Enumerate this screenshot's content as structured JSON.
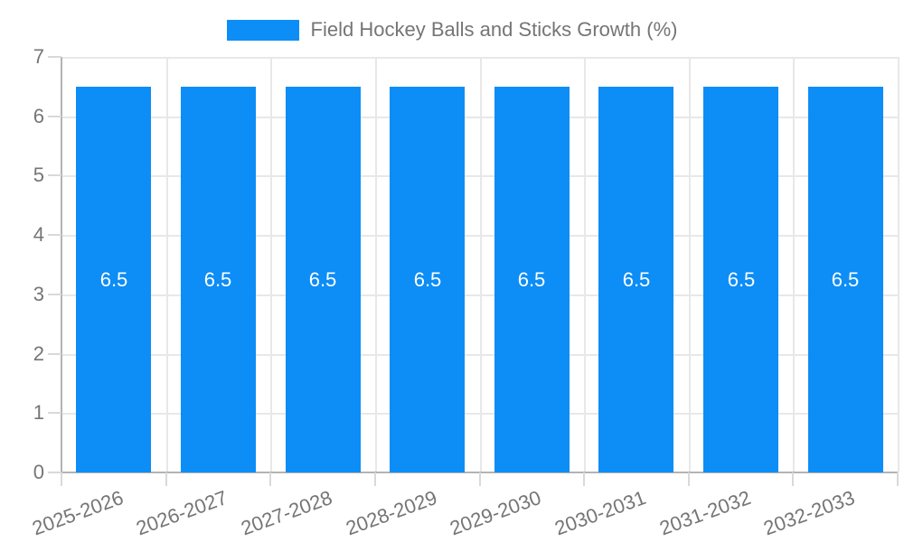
{
  "legend": {
    "label": "Field Hockey Balls and Sticks Growth (%)"
  },
  "chart_data": {
    "type": "bar",
    "title": "Field Hockey Balls and Sticks Growth (%)",
    "categories": [
      "2025-2026",
      "2026-2027",
      "2027-2028",
      "2028-2029",
      "2029-2030",
      "2030-2031",
      "2031-2032",
      "2032-2033"
    ],
    "series": [
      {
        "name": "Field Hockey Balls and Sticks Growth (%)",
        "values": [
          6.5,
          6.5,
          6.5,
          6.5,
          6.5,
          6.5,
          6.5,
          6.5
        ]
      }
    ],
    "value_labels": [
      "6.5",
      "6.5",
      "6.5",
      "6.5",
      "6.5",
      "6.5",
      "6.5",
      "6.5"
    ],
    "xlabel": "",
    "ylabel": "",
    "ylim": [
      0,
      7
    ],
    "y_ticks": [
      0,
      1,
      2,
      3,
      4,
      5,
      6,
      7
    ],
    "grid": true,
    "legend_position": "top",
    "x_label_rotation_deg": -20,
    "colors": {
      "bar": "#0d8df6",
      "value_label": "#ffffff",
      "axis_text": "#757575",
      "legend_text": "#757575",
      "grid_line": "#e8e8e8",
      "axis_line": "#b3b3b3",
      "tick_line": "#d9d9d9",
      "background": "#ffffff"
    }
  }
}
